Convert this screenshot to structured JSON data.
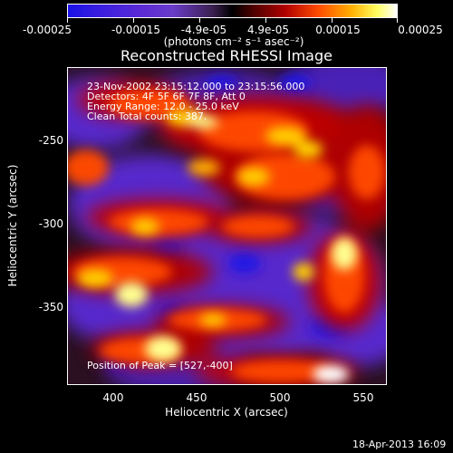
{
  "colorbar": {
    "tick_labels": [
      "-0.00025",
      "-0.00015",
      "-4.9e-05",
      "4.9e-05",
      "0.00015",
      "0.00025"
    ],
    "units_label": "(photons cm⁻² s⁻¹ asec⁻²)"
  },
  "plot": {
    "title": "Reconstructed RHESSI Image",
    "x_label": "Heliocentric X (arcsec)",
    "y_label": "Heliocentric Y (arcsec)",
    "x_ticks": [
      "400",
      "450",
      "500",
      "550"
    ],
    "y_ticks": [
      "-250",
      "-300",
      "-350"
    ],
    "info_lines": [
      "23-Nov-2002 23:15:12.000 to 23:15:56.000",
      "Detectors: 4F 5F 6F 7F 8F, Att 0",
      "Energy Range: 12.0 - 25.0 keV",
      "Clean     Total counts: 387."
    ],
    "peak_label": "Position of Peak = [527,-400]"
  },
  "footer": {
    "timestamp": "18-Apr-2013 16:09"
  }
}
